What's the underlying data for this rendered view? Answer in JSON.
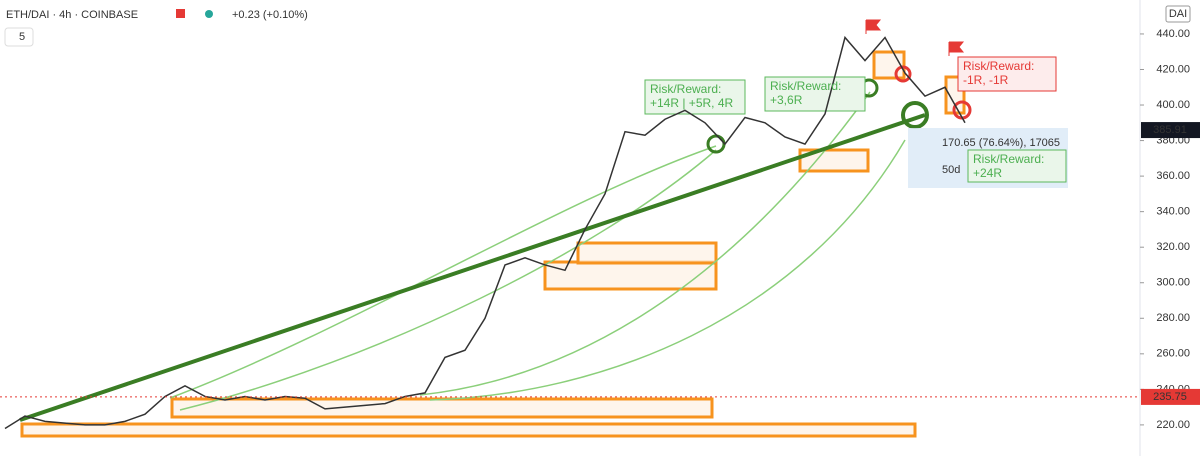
{
  "chart_data": {
    "type": "line",
    "symbol": "ETH/DAI · 4h · COINBASE",
    "change": "+0.23 (+0.10%)",
    "interval": "5",
    "currency": "DAI",
    "values": [
      218,
      225,
      222,
      221,
      220,
      220,
      222,
      226,
      236,
      242,
      236,
      234,
      236,
      234,
      236,
      235,
      229,
      230,
      231,
      232,
      236,
      238,
      258,
      262,
      280,
      310,
      314,
      310,
      307,
      330,
      350,
      385,
      383,
      392,
      397,
      390,
      378,
      393,
      390,
      382,
      378,
      395,
      438,
      425,
      438,
      418,
      405,
      410,
      390
    ],
    "color": "#333333",
    "ylim": [
      202.5,
      459.1
    ],
    "yticks": [
      {
        "value": 220,
        "label": "220.00"
      },
      {
        "value": 240,
        "label": "240.00"
      },
      {
        "value": 260,
        "label": "260.00"
      },
      {
        "value": 280,
        "label": "280.00"
      },
      {
        "value": 300,
        "label": "300.00"
      },
      {
        "value": 320,
        "label": "320.00"
      },
      {
        "value": 340,
        "label": "340.00"
      },
      {
        "value": 360,
        "label": "360.00"
      },
      {
        "value": 380,
        "label": "380.00"
      },
      {
        "value": 400,
        "label": "400.00"
      },
      {
        "value": 420,
        "label": "420.00"
      },
      {
        "value": 440,
        "label": "440.00"
      }
    ],
    "last_price": 235.75,
    "marker_price": 385.91,
    "annotations": [
      {
        "lines": [
          "Risk/Reward:",
          "+14R | +5R, 4R"
        ]
      },
      {
        "lines": [
          "Risk/Reward:",
          "+3,6R"
        ]
      },
      {
        "lines": [
          "Risk/Reward:",
          "-1R, -1R"
        ]
      },
      {
        "lines": [
          "Risk/Reward:",
          "+24R"
        ]
      }
    ],
    "measure": {
      "range": "170.65 (76.64%), 17065",
      "duration": "50d"
    }
  }
}
